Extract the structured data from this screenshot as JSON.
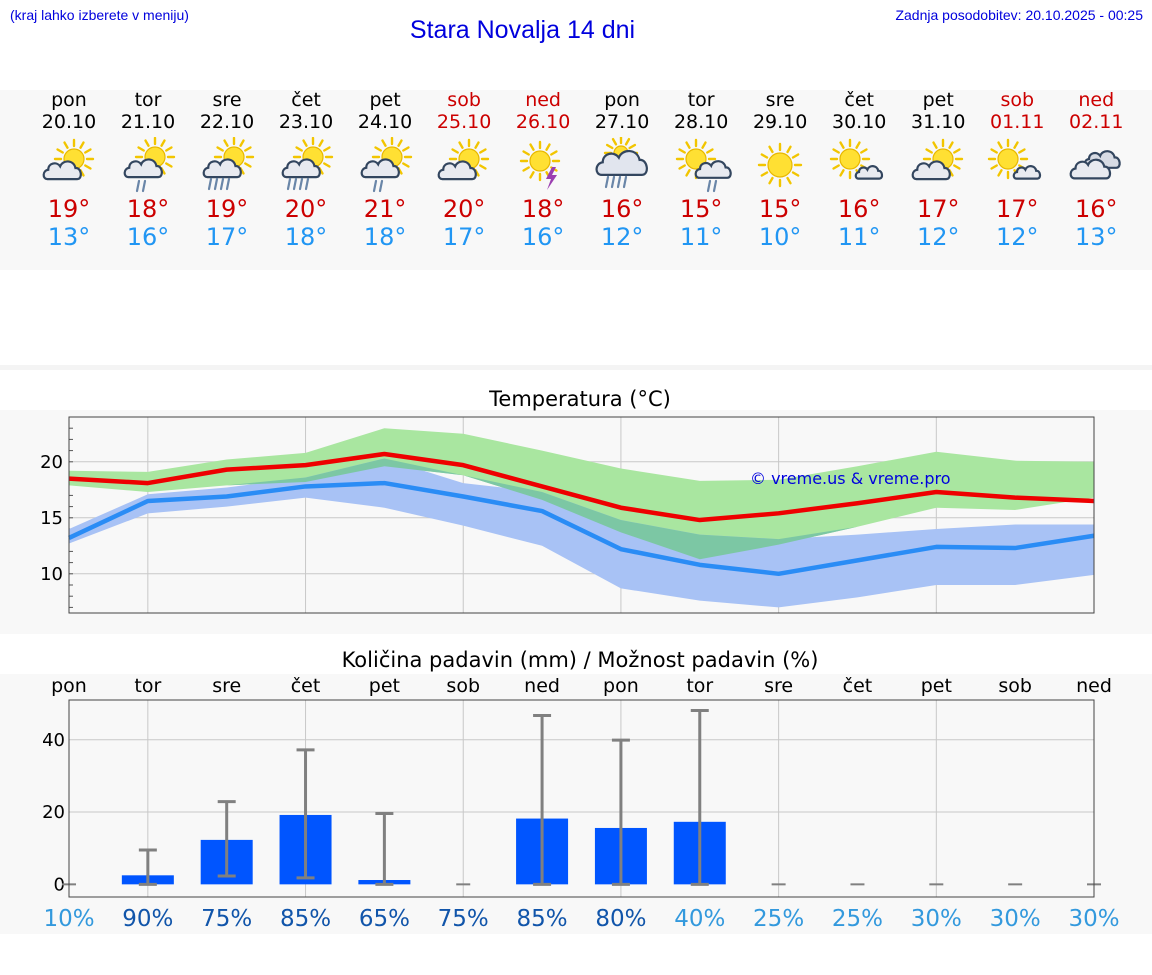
{
  "header": {
    "hint": "(kraj lahko izberete v meniju)",
    "title": "Stara Novalja 14 dni",
    "updated": "Zadnja posodobitev: 20.10.2025 - 00:25"
  },
  "days": [
    {
      "name": "pon",
      "date": "20.10",
      "tmax": "19°",
      "tmin": "13°",
      "icon": "partly-cloudy-icon",
      "weekend": false
    },
    {
      "name": "tor",
      "date": "21.10",
      "tmax": "18°",
      "tmin": "16°",
      "icon": "sun-cloud-rain-icon",
      "weekend": false
    },
    {
      "name": "sre",
      "date": "22.10",
      "tmax": "19°",
      "tmin": "17°",
      "icon": "sun-cloud-heavy-rain-icon",
      "weekend": false
    },
    {
      "name": "čet",
      "date": "23.10",
      "tmax": "20°",
      "tmin": "18°",
      "icon": "sun-cloud-heavy-rain-icon",
      "weekend": false
    },
    {
      "name": "pet",
      "date": "24.10",
      "tmax": "21°",
      "tmin": "18°",
      "icon": "sun-cloud-rain-icon",
      "weekend": false
    },
    {
      "name": "sob",
      "date": "25.10",
      "tmax": "20°",
      "tmin": "17°",
      "icon": "partly-cloudy-icon",
      "weekend": true
    },
    {
      "name": "ned",
      "date": "26.10",
      "tmax": "18°",
      "tmin": "16°",
      "icon": "sun-thunder-icon",
      "weekend": true
    },
    {
      "name": "pon",
      "date": "27.10",
      "tmax": "16°",
      "tmin": "12°",
      "icon": "cloud-heavy-rain-icon",
      "weekend": false
    },
    {
      "name": "tor",
      "date": "28.10",
      "tmax": "15°",
      "tmin": "11°",
      "icon": "sun-cloud-light-rain-icon",
      "weekend": false
    },
    {
      "name": "sre",
      "date": "29.10",
      "tmax": "15°",
      "tmin": "10°",
      "icon": "sun-icon",
      "weekend": false
    },
    {
      "name": "čet",
      "date": "30.10",
      "tmax": "16°",
      "tmin": "11°",
      "icon": "sun-small-cloud-icon",
      "weekend": false
    },
    {
      "name": "pet",
      "date": "31.10",
      "tmax": "17°",
      "tmin": "12°",
      "icon": "partly-cloudy-icon",
      "weekend": false
    },
    {
      "name": "sob",
      "date": "01.11",
      "tmax": "17°",
      "tmin": "12°",
      "icon": "sun-small-cloud-icon",
      "weekend": true
    },
    {
      "name": "ned",
      "date": "02.11",
      "tmax": "16°",
      "tmin": "13°",
      "icon": "cloudy-icon",
      "weekend": true
    }
  ],
  "colors": {
    "link": "#0000dd",
    "tmax": "#cc0000",
    "tmin": "#2196f3",
    "max_line": "#ee0000",
    "min_line": "#2a8cf5",
    "max_band": "#a9e6a0",
    "min_band": "#a8c2f5",
    "overlap_band": "#7cc7a4",
    "bar": "#0055ff",
    "errbar": "#808080",
    "prob_low": "#3399dd",
    "prob_high": "#1155aa"
  },
  "chart_data": [
    {
      "type": "line",
      "title": "Temperatura (°C)",
      "watermark": "© vreme.us & vreme.pro",
      "x": [
        "20.10",
        "21.10",
        "22.10",
        "23.10",
        "24.10",
        "25.10",
        "26.10",
        "27.10",
        "28.10",
        "29.10",
        "30.10",
        "31.10",
        "01.11",
        "02.11"
      ],
      "ylim": [
        6.5,
        24
      ],
      "yticks": [
        10,
        15,
        20
      ],
      "grid": true,
      "series": [
        {
          "role": "max",
          "values": [
            18.5,
            18.1,
            19.3,
            19.7,
            20.7,
            19.7,
            17.8,
            15.9,
            14.8,
            15.4,
            16.3,
            17.3,
            16.8,
            16.5
          ]
        },
        {
          "role": "min",
          "values": [
            13.2,
            16.5,
            16.9,
            17.8,
            18.1,
            16.9,
            15.6,
            12.2,
            10.8,
            10.0,
            11.2,
            12.4,
            12.3,
            13.4
          ]
        },
        {
          "role": "max-range-low",
          "values": [
            17.9,
            17.3,
            17.9,
            18.2,
            19.6,
            18.8,
            16.6,
            13.7,
            11.3,
            12.6,
            14.2,
            15.9,
            15.7,
            16.8
          ]
        },
        {
          "role": "max-range-high",
          "values": [
            19.2,
            19.1,
            20.2,
            20.8,
            23.0,
            22.5,
            21.0,
            19.4,
            18.3,
            18.4,
            19.6,
            20.9,
            20.1,
            20.0
          ]
        },
        {
          "role": "min-range-low",
          "values": [
            12.7,
            15.4,
            16.0,
            16.8,
            15.9,
            14.3,
            12.5,
            8.7,
            7.6,
            7.0,
            7.9,
            9.0,
            9.0,
            9.9
          ]
        },
        {
          "role": "min-range-high",
          "values": [
            14.0,
            17.1,
            17.7,
            18.6,
            20.3,
            18.1,
            17.3,
            14.8,
            13.5,
            13.1,
            13.5,
            14.0,
            14.4,
            14.4
          ]
        }
      ]
    },
    {
      "type": "bar",
      "title": "Količina padavin (mm) / Možnost padavin (%)",
      "categories": [
        "pon",
        "tor",
        "sre",
        "čet",
        "pet",
        "sob",
        "ned",
        "pon",
        "tor",
        "sre",
        "čet",
        "pet",
        "sob",
        "ned"
      ],
      "ylim": [
        -3.5,
        51
      ],
      "yticks": [
        0,
        20,
        40
      ],
      "grid": true,
      "values": [
        0,
        2.5,
        12.3,
        19.2,
        1.2,
        0,
        18.2,
        15.6,
        17.3,
        0,
        0,
        0,
        0,
        0
      ],
      "error_low": [
        0,
        0,
        2.3,
        1.8,
        0,
        0,
        0,
        0,
        0,
        0,
        0,
        0,
        0,
        0
      ],
      "error_high": [
        0,
        9.5,
        22.9,
        37.2,
        19.6,
        0,
        46.7,
        39.9,
        48.1,
        0,
        0,
        0,
        0,
        0
      ],
      "probability": [
        "10%",
        "90%",
        "75%",
        "85%",
        "65%",
        "75%",
        "85%",
        "80%",
        "40%",
        "25%",
        "25%",
        "30%",
        "30%",
        "30%"
      ]
    }
  ]
}
